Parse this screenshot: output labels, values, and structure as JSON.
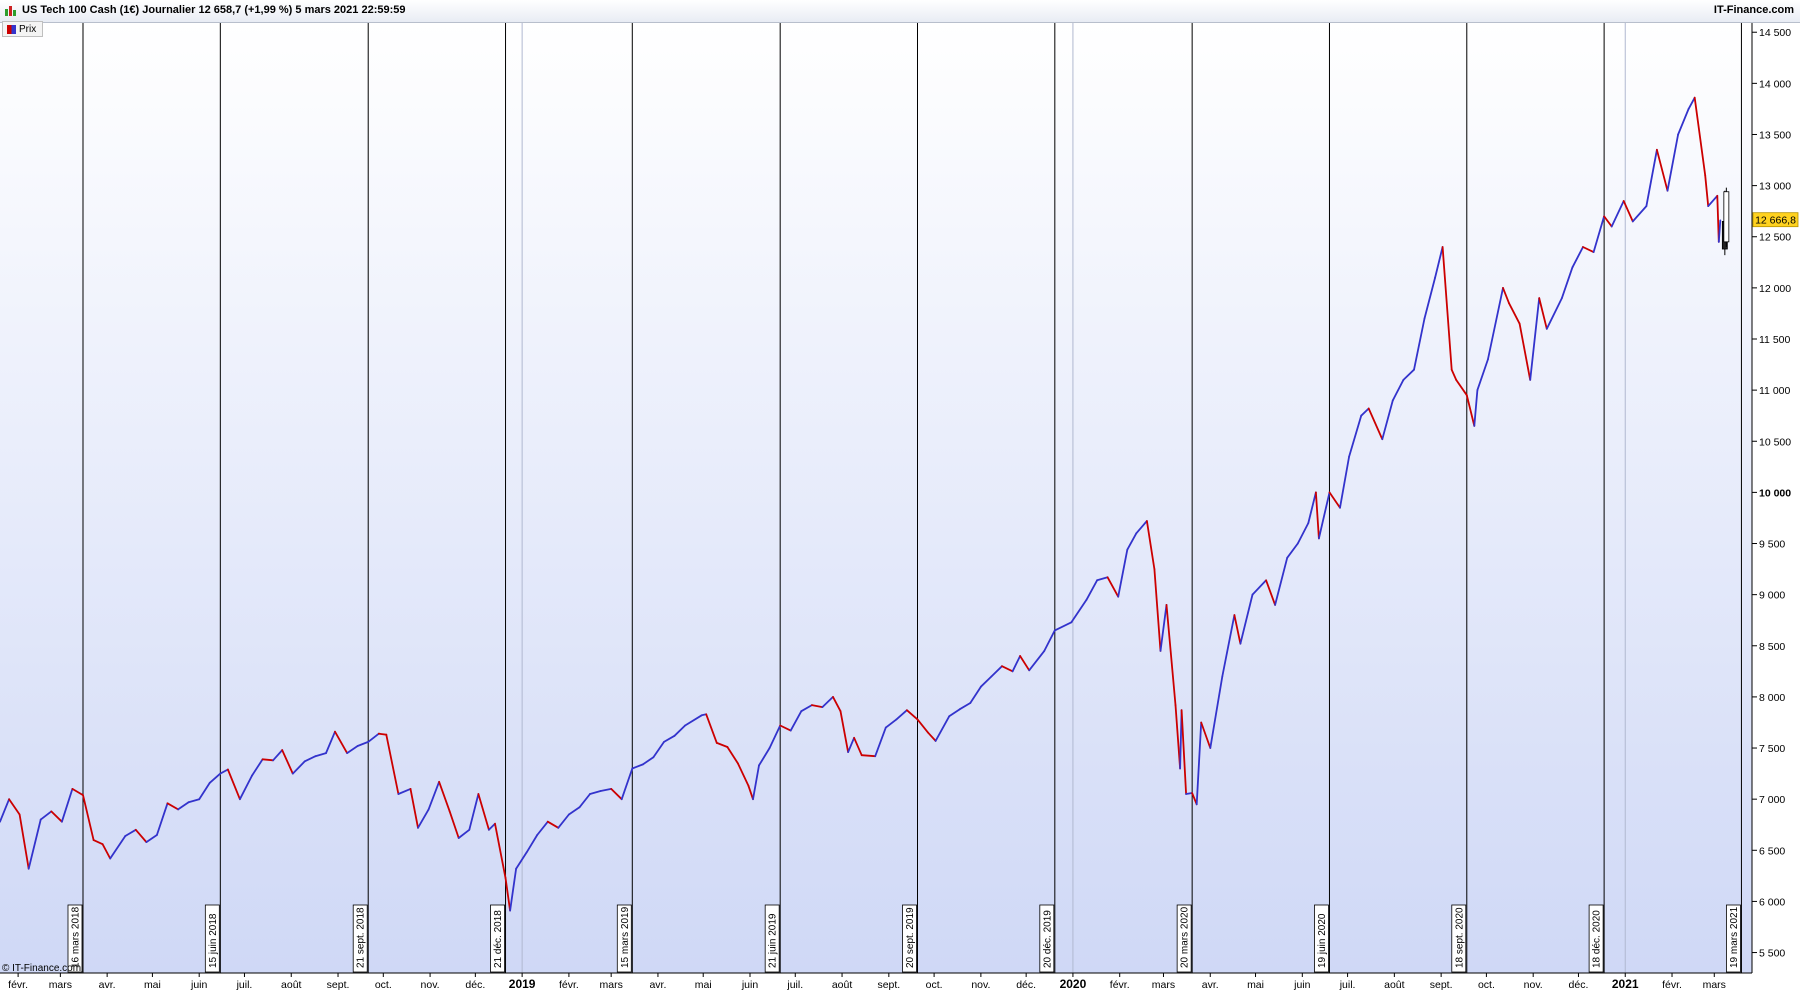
{
  "header": {
    "title": "US Tech 100 Cash (1€) Journalier 12 658,7 (+1,99 %) 5 mars 2021 22:59:59",
    "brand": "IT-Finance.com"
  },
  "legend": {
    "label": "Prix"
  },
  "copyright": "© IT-Finance.com",
  "price_tag": {
    "value": 12666.8,
    "label": "12 666,8"
  },
  "chart_data": {
    "type": "line",
    "title": "US Tech 100 Cash (1€) Journalier",
    "ylim": [
      5300,
      14600
    ],
    "xlim": [
      "2018-01-20",
      "2021-03-26"
    ],
    "y_ticks": [
      {
        "value": 5500,
        "label": "5 500"
      },
      {
        "value": 6000,
        "label": "6 000"
      },
      {
        "value": 6500,
        "label": "6 500"
      },
      {
        "value": 7000,
        "label": "7 000"
      },
      {
        "value": 7500,
        "label": "7 500"
      },
      {
        "value": 8000,
        "label": "8 000"
      },
      {
        "value": 8500,
        "label": "8 500"
      },
      {
        "value": 9000,
        "label": "9 000"
      },
      {
        "value": 9500,
        "label": "9 500"
      },
      {
        "value": 10000,
        "label": "10 000",
        "bold": true
      },
      {
        "value": 10500,
        "label": "10 500"
      },
      {
        "value": 11000,
        "label": "11 000"
      },
      {
        "value": 11500,
        "label": "11 500"
      },
      {
        "value": 12000,
        "label": "12 000"
      },
      {
        "value": 12500,
        "label": "12 500"
      },
      {
        "value": 13000,
        "label": "13 000"
      },
      {
        "value": 13500,
        "label": "13 500"
      },
      {
        "value": 14000,
        "label": "14 000"
      },
      {
        "value": 14500,
        "label": "14 500"
      }
    ],
    "x_ticks": [
      {
        "date": "2018-02-01",
        "label": "févr."
      },
      {
        "date": "2018-03-01",
        "label": "mars"
      },
      {
        "date": "2018-04-01",
        "label": "avr."
      },
      {
        "date": "2018-05-01",
        "label": "mai"
      },
      {
        "date": "2018-06-01",
        "label": "juin"
      },
      {
        "date": "2018-07-01",
        "label": "juil."
      },
      {
        "date": "2018-08-01",
        "label": "août"
      },
      {
        "date": "2018-09-01",
        "label": "sept."
      },
      {
        "date": "2018-10-01",
        "label": "oct."
      },
      {
        "date": "2018-11-01",
        "label": "nov."
      },
      {
        "date": "2018-12-01",
        "label": "déc."
      },
      {
        "date": "2019-01-01",
        "label": "2019",
        "bold": true
      },
      {
        "date": "2019-02-01",
        "label": "févr."
      },
      {
        "date": "2019-03-01",
        "label": "mars"
      },
      {
        "date": "2019-04-01",
        "label": "avr."
      },
      {
        "date": "2019-05-01",
        "label": "mai"
      },
      {
        "date": "2019-06-01",
        "label": "juin"
      },
      {
        "date": "2019-07-01",
        "label": "juil."
      },
      {
        "date": "2019-08-01",
        "label": "août"
      },
      {
        "date": "2019-09-01",
        "label": "sept."
      },
      {
        "date": "2019-10-01",
        "label": "oct."
      },
      {
        "date": "2019-11-01",
        "label": "nov."
      },
      {
        "date": "2019-12-01",
        "label": "déc."
      },
      {
        "date": "2020-01-01",
        "label": "2020",
        "bold": true
      },
      {
        "date": "2020-02-01",
        "label": "févr."
      },
      {
        "date": "2020-03-01",
        "label": "mars"
      },
      {
        "date": "2020-04-01",
        "label": "avr."
      },
      {
        "date": "2020-05-01",
        "label": "mai"
      },
      {
        "date": "2020-06-01",
        "label": "juin"
      },
      {
        "date": "2020-07-01",
        "label": "juil."
      },
      {
        "date": "2020-08-01",
        "label": "août"
      },
      {
        "date": "2020-09-01",
        "label": "sept."
      },
      {
        "date": "2020-10-01",
        "label": "oct."
      },
      {
        "date": "2020-11-01",
        "label": "nov."
      },
      {
        "date": "2020-12-01",
        "label": "déc."
      },
      {
        "date": "2021-01-01",
        "label": "2021",
        "bold": true
      },
      {
        "date": "2021-02-01",
        "label": "févr."
      },
      {
        "date": "2021-03-01",
        "label": "mars"
      }
    ],
    "event_lines": [
      {
        "date": "2018-03-16",
        "label": "16 mars 2018"
      },
      {
        "date": "2018-06-15",
        "label": "15 juin 2018"
      },
      {
        "date": "2018-09-21",
        "label": "21 sept. 2018"
      },
      {
        "date": "2018-12-21",
        "label": "21 déc. 2018"
      },
      {
        "date": "2019-03-15",
        "label": "15 mars 2019"
      },
      {
        "date": "2019-06-21",
        "label": "21 juin 2019"
      },
      {
        "date": "2019-09-20",
        "label": "20 sept. 2019"
      },
      {
        "date": "2019-12-20",
        "label": "20 déc. 2019"
      },
      {
        "date": "2020-03-20",
        "label": "20 mars 2020"
      },
      {
        "date": "2020-06-19",
        "label": "19 juin 2020"
      },
      {
        "date": "2020-09-18",
        "label": "18 sept. 2020"
      },
      {
        "date": "2020-12-18",
        "label": "18 déc. 2020"
      },
      {
        "date": "2021-03-19",
        "label": "19 mars 2021"
      }
    ],
    "series": [
      {
        "name": "Prix",
        "colors": {
          "up": "#3333cc",
          "down": "#cc0000"
        },
        "points": [
          [
            "2018-01-20",
            6780
          ],
          [
            "2018-01-26",
            7000
          ],
          [
            "2018-02-02",
            6850
          ],
          [
            "2018-02-08",
            6320
          ],
          [
            "2018-02-16",
            6800
          ],
          [
            "2018-02-23",
            6880
          ],
          [
            "2018-03-02",
            6780
          ],
          [
            "2018-03-09",
            7100
          ],
          [
            "2018-03-16",
            7040
          ],
          [
            "2018-03-23",
            6600
          ],
          [
            "2018-03-29",
            6560
          ],
          [
            "2018-04-03",
            6420
          ],
          [
            "2018-04-13",
            6640
          ],
          [
            "2018-04-20",
            6700
          ],
          [
            "2018-04-27",
            6580
          ],
          [
            "2018-05-04",
            6650
          ],
          [
            "2018-05-11",
            6960
          ],
          [
            "2018-05-18",
            6900
          ],
          [
            "2018-05-25",
            6970
          ],
          [
            "2018-06-01",
            7000
          ],
          [
            "2018-06-08",
            7160
          ],
          [
            "2018-06-15",
            7250
          ],
          [
            "2018-06-20",
            7290
          ],
          [
            "2018-06-28",
            7000
          ],
          [
            "2018-07-06",
            7230
          ],
          [
            "2018-07-13",
            7390
          ],
          [
            "2018-07-20",
            7380
          ],
          [
            "2018-07-26",
            7480
          ],
          [
            "2018-08-02",
            7250
          ],
          [
            "2018-08-10",
            7370
          ],
          [
            "2018-08-17",
            7420
          ],
          [
            "2018-08-24",
            7450
          ],
          [
            "2018-08-30",
            7660
          ],
          [
            "2018-09-07",
            7450
          ],
          [
            "2018-09-14",
            7520
          ],
          [
            "2018-09-21",
            7560
          ],
          [
            "2018-09-28",
            7640
          ],
          [
            "2018-10-03",
            7630
          ],
          [
            "2018-10-11",
            7050
          ],
          [
            "2018-10-19",
            7100
          ],
          [
            "2018-10-24",
            6720
          ],
          [
            "2018-10-31",
            6900
          ],
          [
            "2018-11-07",
            7170
          ],
          [
            "2018-11-14",
            6880
          ],
          [
            "2018-11-20",
            6620
          ],
          [
            "2018-11-27",
            6700
          ],
          [
            "2018-12-03",
            7050
          ],
          [
            "2018-12-10",
            6700
          ],
          [
            "2018-12-14",
            6760
          ],
          [
            "2018-12-21",
            6230
          ],
          [
            "2018-12-24",
            5910
          ],
          [
            "2018-12-28",
            6320
          ],
          [
            "2019-01-04",
            6480
          ],
          [
            "2019-01-11",
            6650
          ],
          [
            "2019-01-18",
            6780
          ],
          [
            "2019-01-25",
            6720
          ],
          [
            "2019-02-01",
            6850
          ],
          [
            "2019-02-08",
            6920
          ],
          [
            "2019-02-15",
            7050
          ],
          [
            "2019-02-22",
            7080
          ],
          [
            "2019-03-01",
            7100
          ],
          [
            "2019-03-08",
            7000
          ],
          [
            "2019-03-15",
            7300
          ],
          [
            "2019-03-22",
            7340
          ],
          [
            "2019-03-29",
            7410
          ],
          [
            "2019-04-05",
            7560
          ],
          [
            "2019-04-12",
            7620
          ],
          [
            "2019-04-19",
            7720
          ],
          [
            "2019-04-30",
            7820
          ],
          [
            "2019-05-03",
            7830
          ],
          [
            "2019-05-10",
            7550
          ],
          [
            "2019-05-17",
            7510
          ],
          [
            "2019-05-24",
            7350
          ],
          [
            "2019-05-31",
            7130
          ],
          [
            "2019-06-03",
            7000
          ],
          [
            "2019-06-07",
            7330
          ],
          [
            "2019-06-14",
            7500
          ],
          [
            "2019-06-21",
            7720
          ],
          [
            "2019-06-28",
            7670
          ],
          [
            "2019-07-05",
            7860
          ],
          [
            "2019-07-12",
            7920
          ],
          [
            "2019-07-19",
            7900
          ],
          [
            "2019-07-26",
            8000
          ],
          [
            "2019-07-31",
            7860
          ],
          [
            "2019-08-05",
            7460
          ],
          [
            "2019-08-09",
            7600
          ],
          [
            "2019-08-14",
            7430
          ],
          [
            "2019-08-23",
            7420
          ],
          [
            "2019-08-30",
            7700
          ],
          [
            "2019-09-06",
            7780
          ],
          [
            "2019-09-13",
            7870
          ],
          [
            "2019-09-20",
            7780
          ],
          [
            "2019-09-27",
            7650
          ],
          [
            "2019-10-02",
            7570
          ],
          [
            "2019-10-11",
            7810
          ],
          [
            "2019-10-18",
            7880
          ],
          [
            "2019-10-25",
            7940
          ],
          [
            "2019-11-01",
            8100
          ],
          [
            "2019-11-08",
            8200
          ],
          [
            "2019-11-15",
            8300
          ],
          [
            "2019-11-22",
            8250
          ],
          [
            "2019-11-27",
            8400
          ],
          [
            "2019-12-03",
            8260
          ],
          [
            "2019-12-13",
            8450
          ],
          [
            "2019-12-20",
            8650
          ],
          [
            "2019-12-31",
            8730
          ],
          [
            "2020-01-10",
            8950
          ],
          [
            "2020-01-17",
            9140
          ],
          [
            "2020-01-24",
            9170
          ],
          [
            "2020-01-31",
            8980
          ],
          [
            "2020-02-06",
            9440
          ],
          [
            "2020-02-12",
            9600
          ],
          [
            "2020-02-19",
            9720
          ],
          [
            "2020-02-24",
            9250
          ],
          [
            "2020-02-28",
            8450
          ],
          [
            "2020-03-03",
            8900
          ],
          [
            "2020-03-09",
            7920
          ],
          [
            "2020-03-12",
            7300
          ],
          [
            "2020-03-13",
            7870
          ],
          [
            "2020-03-16",
            7050
          ],
          [
            "2020-03-20",
            7060
          ],
          [
            "2020-03-23",
            6950
          ],
          [
            "2020-03-26",
            7750
          ],
          [
            "2020-04-01",
            7500
          ],
          [
            "2020-04-09",
            8200
          ],
          [
            "2020-04-17",
            8800
          ],
          [
            "2020-04-21",
            8520
          ],
          [
            "2020-04-29",
            9000
          ],
          [
            "2020-05-08",
            9140
          ],
          [
            "2020-05-14",
            8900
          ],
          [
            "2020-05-22",
            9360
          ],
          [
            "2020-05-29",
            9500
          ],
          [
            "2020-06-05",
            9700
          ],
          [
            "2020-06-10",
            10000
          ],
          [
            "2020-06-12",
            9550
          ],
          [
            "2020-06-19",
            10000
          ],
          [
            "2020-06-26",
            9850
          ],
          [
            "2020-07-02",
            10350
          ],
          [
            "2020-07-10",
            10750
          ],
          [
            "2020-07-15",
            10820
          ],
          [
            "2020-07-24",
            10520
          ],
          [
            "2020-07-31",
            10900
          ],
          [
            "2020-08-07",
            11100
          ],
          [
            "2020-08-14",
            11200
          ],
          [
            "2020-08-21",
            11700
          ],
          [
            "2020-08-28",
            12100
          ],
          [
            "2020-09-02",
            12400
          ],
          [
            "2020-09-08",
            11200
          ],
          [
            "2020-09-11",
            11100
          ],
          [
            "2020-09-18",
            10950
          ],
          [
            "2020-09-23",
            10650
          ],
          [
            "2020-09-25",
            11000
          ],
          [
            "2020-10-02",
            11300
          ],
          [
            "2020-10-12",
            12000
          ],
          [
            "2020-10-16",
            11850
          ],
          [
            "2020-10-23",
            11650
          ],
          [
            "2020-10-30",
            11100
          ],
          [
            "2020-11-05",
            11900
          ],
          [
            "2020-11-10",
            11600
          ],
          [
            "2020-11-20",
            11900
          ],
          [
            "2020-11-27",
            12200
          ],
          [
            "2020-12-04",
            12400
          ],
          [
            "2020-12-11",
            12350
          ],
          [
            "2020-12-18",
            12700
          ],
          [
            "2020-12-23",
            12600
          ],
          [
            "2020-12-31",
            12850
          ],
          [
            "2021-01-06",
            12650
          ],
          [
            "2021-01-15",
            12800
          ],
          [
            "2021-01-22",
            13350
          ],
          [
            "2021-01-29",
            12950
          ],
          [
            "2021-02-05",
            13500
          ],
          [
            "2021-02-12",
            13750
          ],
          [
            "2021-02-16",
            13860
          ],
          [
            "2021-02-23",
            13100
          ],
          [
            "2021-02-25",
            12800
          ],
          [
            "2021-03-03",
            12900
          ],
          [
            "2021-03-04",
            12450
          ],
          [
            "2021-03-05",
            12660
          ]
        ]
      }
    ],
    "candles": [
      {
        "date": "2021-03-08",
        "open": 12650,
        "high": 12950,
        "low": 12320,
        "close": 12380
      },
      {
        "date": "2021-03-09",
        "open": 12450,
        "high": 12980,
        "low": 12400,
        "close": 12940
      }
    ]
  }
}
